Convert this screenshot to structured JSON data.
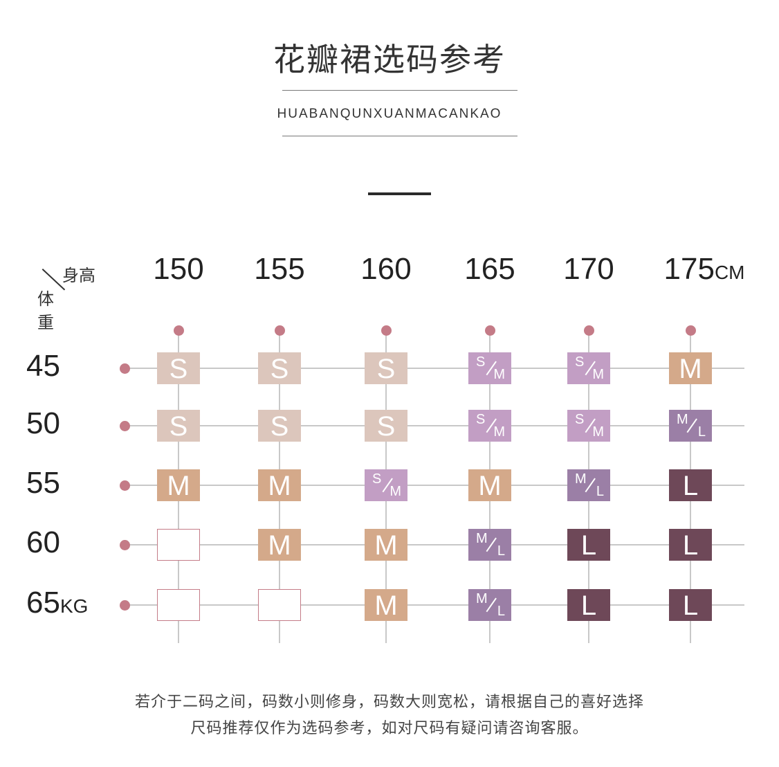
{
  "title": "花瓣裙选码参考",
  "subtitle": "HUABANQUNXUANMACANKAO",
  "corner": {
    "height_label": "身高",
    "weight_label_1": "体",
    "weight_label_2": "重"
  },
  "columns": [
    {
      "value": "150",
      "unit": ""
    },
    {
      "value": "155",
      "unit": ""
    },
    {
      "value": "160",
      "unit": ""
    },
    {
      "value": "165",
      "unit": ""
    },
    {
      "value": "170",
      "unit": ""
    },
    {
      "value": "175",
      "unit": "CM"
    }
  ],
  "rows": [
    {
      "value": "45",
      "unit": "",
      "cells": [
        "S",
        "S",
        "S",
        "S/M",
        "S/M",
        "M"
      ]
    },
    {
      "value": "50",
      "unit": "",
      "cells": [
        "S",
        "S",
        "S",
        "S/M",
        "S/M",
        "M/L"
      ]
    },
    {
      "value": "55",
      "unit": "",
      "cells": [
        "M",
        "M",
        "S/M",
        "M",
        "M/L",
        "L"
      ]
    },
    {
      "value": "60",
      "unit": "",
      "cells": [
        "",
        "M",
        "M",
        "M/L",
        "L",
        "L"
      ]
    },
    {
      "value": "65",
      "unit": "KG",
      "cells": [
        "",
        "",
        "M",
        "M/L",
        "L",
        "L"
      ]
    }
  ],
  "size_colors": {
    "S": "#dcc6bc",
    "S/M": "#c29ec4",
    "M": "#d4a98a",
    "M/L": "#9b7fa6",
    "L": "#6e4858"
  },
  "accent_color": "#c47b87",
  "note": {
    "line1": "若介于二码之间，码数小则修身，码数大则宽松，请根据自己的喜好选择",
    "line2": "尺码推荐仅作为选码参考，如对尺码有疑问请咨询客服。"
  }
}
